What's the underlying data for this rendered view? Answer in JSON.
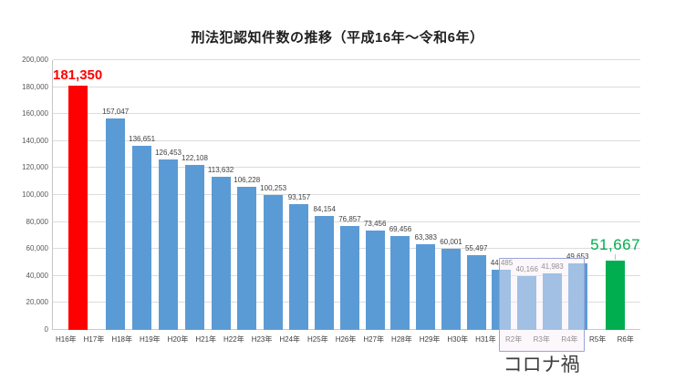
{
  "title": "刑法犯認知件数の推移（平成16年～令和6年）",
  "chart_data": {
    "type": "bar",
    "categories": [
      "H16年",
      "H17年",
      "H18年",
      "H19年",
      "H20年",
      "H21年",
      "H22年",
      "H23年",
      "H24年",
      "H25年",
      "H26年",
      "H27年",
      "H28年",
      "H29年",
      "H30年",
      "H31年",
      "R2年",
      "R3年",
      "R4年",
      "R5年",
      "R6年"
    ],
    "values": [
      181350,
      157047,
      136651,
      126453,
      122108,
      113632,
      106228,
      100253,
      93157,
      84154,
      76857,
      73456,
      69456,
      63383,
      60001,
      55497,
      44485,
      40166,
      41983,
      49653,
      51667
    ],
    "value_labels": [
      "181,350",
      "157,047",
      "136,651",
      "126,453",
      "122,108",
      "113,632",
      "106,228",
      "100,253",
      "93,157",
      "84,154",
      "76,857",
      "73,456",
      "69,456",
      "63,383",
      "60,001",
      "55,497",
      "44,485",
      "40,166",
      "41,983",
      "49,653",
      "51,667"
    ],
    "ylim": [
      0,
      200000
    ],
    "ytick_values": [
      0,
      20000,
      40000,
      60000,
      80000,
      100000,
      120000,
      140000,
      160000,
      180000,
      200000
    ],
    "ytick_labels": [
      "0",
      "20,000",
      "40,000",
      "60,000",
      "80,000",
      "100,000",
      "120,000",
      "140,000",
      "160,000",
      "180,000",
      "200,000"
    ],
    "grid": true,
    "legend": "none",
    "colors": {
      "bar_default": "#5b9bd5",
      "bar_first": "#ff0000",
      "bar_last": "#00ae50",
      "label_first": "#ff0000",
      "label_last": "#00ae50"
    },
    "annotations": {
      "covid": {
        "label": "コロナ禍",
        "start_index": 16,
        "end_index": 18,
        "start_category": "R2年",
        "end_category": "R4年"
      }
    }
  }
}
